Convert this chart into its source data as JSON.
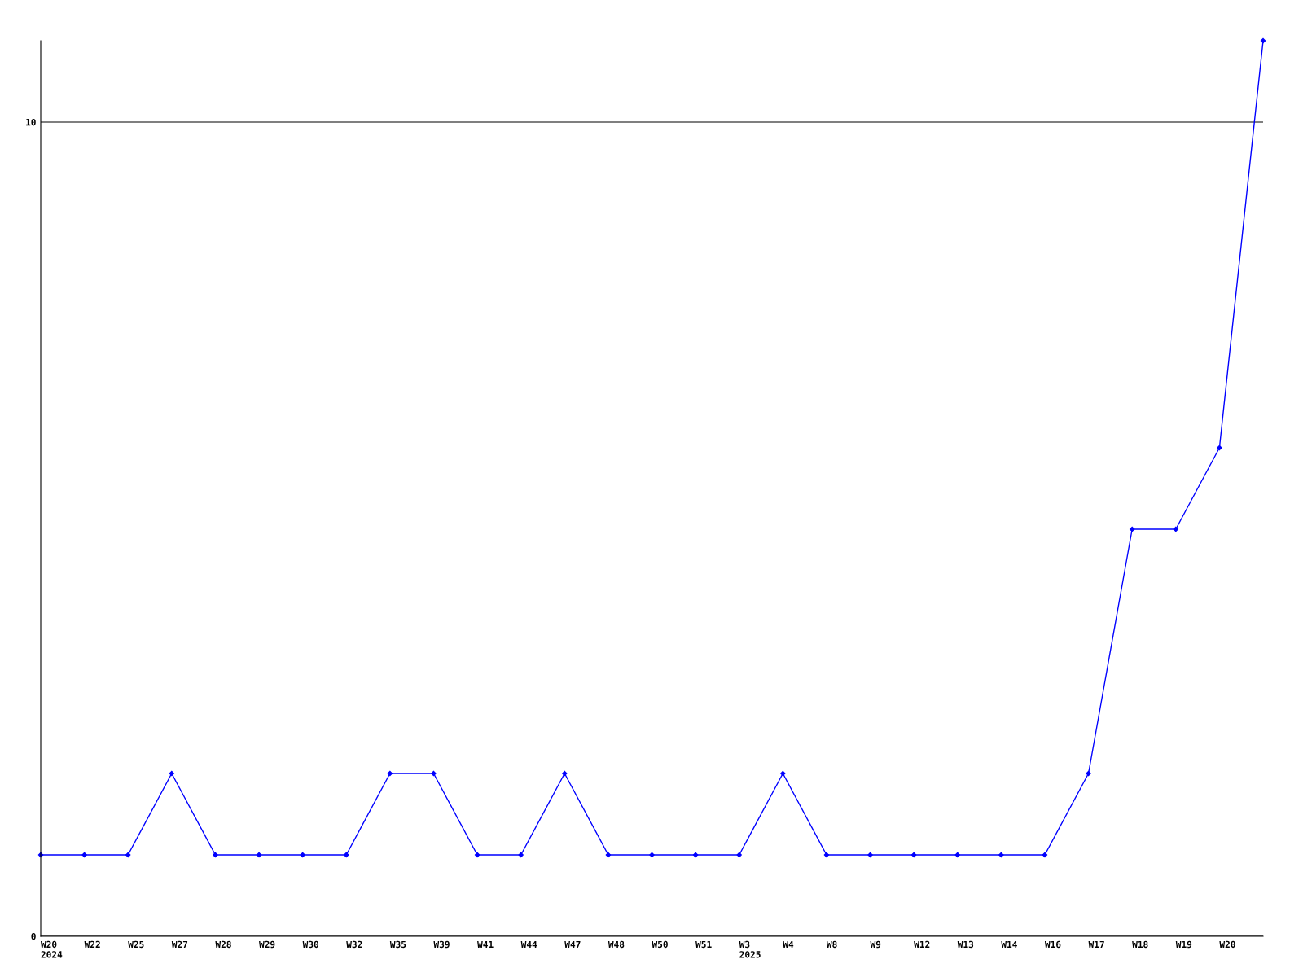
{
  "chart_data": {
    "type": "line",
    "categories": [
      "W20\n2024",
      "W22",
      "W25",
      "W27",
      "W28",
      "W29",
      "W30",
      "W32",
      "W35",
      "W39",
      "W41",
      "W44",
      "W47",
      "W48",
      "W50",
      "W51",
      "W3\n2025",
      "W4",
      "W8",
      "W9",
      "W12",
      "W13",
      "W14",
      "W16",
      "W17",
      "W18",
      "W19",
      "W20",
      null
    ],
    "series": [
      {
        "color": "#0000ff",
        "values": [
          1,
          1,
          1,
          2,
          1,
          1,
          1,
          1,
          2,
          2,
          1,
          1,
          2,
          1,
          1,
          1,
          1,
          2,
          1,
          1,
          1,
          1,
          1,
          1,
          2,
          5,
          5,
          6,
          11
        ]
      }
    ],
    "ylim": [
      0,
      11
    ],
    "yticks": [
      0,
      10
    ],
    "grid": "y",
    "marker": "diamond",
    "line_style": "solid"
  }
}
